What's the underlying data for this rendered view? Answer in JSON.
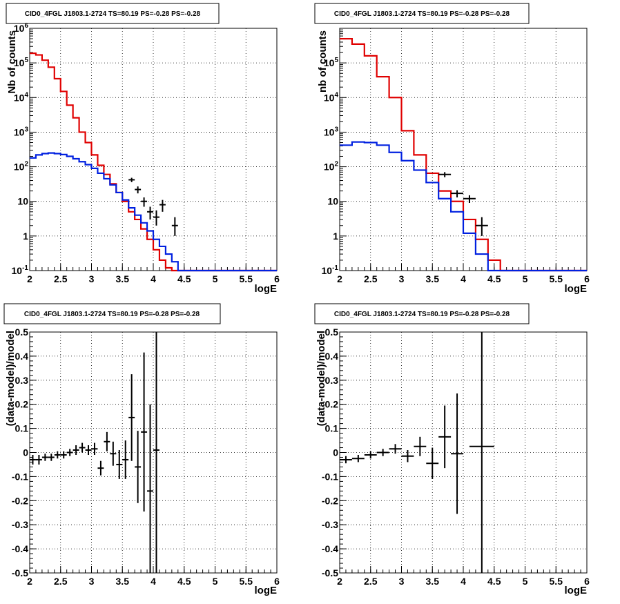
{
  "colors": {
    "data": "#000000",
    "total_model": "#e00000",
    "source_model": "#0020e0",
    "grid": "#000000"
  },
  "chart_data": [
    {
      "type": "line",
      "title": "CID0_4FGL J1803.1-2724 TS=80.19 PS=-0.28 PS=-0.28",
      "xlabel": "logE",
      "ylabel": "Nb of counts",
      "xlim": [
        2,
        6
      ],
      "ylim": [
        0.1,
        1000000
      ],
      "yscale": "log",
      "grid": true,
      "x_ticks": [
        "2",
        "2.5",
        "3",
        "3.5",
        "4",
        "4.5",
        "5",
        "5.5",
        "6"
      ],
      "y_ticks": [
        "10^-1",
        "1",
        "10",
        "10^2",
        "10^3",
        "10^4",
        "10^5",
        "10^6"
      ],
      "bin_edges": [
        2.0,
        2.1,
        2.2,
        2.3,
        2.4,
        2.5,
        2.6,
        2.7,
        2.8,
        2.9,
        3.0,
        3.1,
        3.2,
        3.3,
        3.4,
        3.5,
        3.6,
        3.7,
        3.8,
        3.9,
        4.0,
        4.1,
        4.2,
        4.3,
        4.4,
        4.5,
        4.6,
        4.7,
        4.8,
        4.9,
        5.0,
        5.1,
        5.2,
        5.3,
        5.4,
        5.5,
        5.6,
        5.7,
        5.8,
        5.9,
        6.0
      ],
      "series": [
        {
          "role": "total_model",
          "values": [
            190000,
            170000,
            120000,
            75000,
            35000,
            15000,
            6000,
            2600,
            1000,
            500,
            220,
            110,
            60,
            32,
            18,
            10,
            5,
            3,
            1.6,
            0.8,
            0.4,
            0.2,
            0.12,
            0.1,
            0.1,
            0.1,
            0.1,
            0.1,
            0.1,
            0.1,
            0.1,
            0.1,
            0.1,
            0.1,
            0.1,
            0.1,
            0.1,
            0.1,
            0.1,
            0.1
          ]
        },
        {
          "role": "source_model",
          "values": [
            180,
            220,
            240,
            250,
            240,
            225,
            200,
            170,
            140,
            115,
            90,
            65,
            45,
            30,
            18,
            11,
            6.5,
            4,
            2.4,
            1.4,
            0.8,
            0.5,
            0.3,
            0.18,
            0.1,
            0.1,
            0.1,
            0.1,
            0.1,
            0.1,
            0.1,
            0.1,
            0.1,
            0.1,
            0.1,
            0.1,
            0.1,
            0.1,
            0.1,
            0.1
          ]
        }
      ],
      "points": [
        {
          "x": 3.65,
          "y": 42,
          "ylo": 36,
          "yhi": 48,
          "xerr": 0.05
        },
        {
          "x": 3.75,
          "y": 22,
          "ylo": 17,
          "yhi": 27,
          "xerr": 0.05
        },
        {
          "x": 3.85,
          "y": 10,
          "ylo": 7,
          "yhi": 13,
          "xerr": 0.05
        },
        {
          "x": 3.95,
          "y": 5,
          "ylo": 3,
          "yhi": 7,
          "xerr": 0.05
        },
        {
          "x": 4.05,
          "y": 3.5,
          "ylo": 2,
          "yhi": 5.5,
          "xerr": 0.05
        },
        {
          "x": 4.15,
          "y": 8,
          "ylo": 5,
          "yhi": 11,
          "xerr": 0.05
        },
        {
          "x": 4.35,
          "y": 2,
          "ylo": 1,
          "yhi": 3.5,
          "xerr": 0.05
        }
      ]
    },
    {
      "type": "line",
      "title": "CID0_4FGL J1803.1-2724 TS=80.19 PS=-0.28 PS=-0.28",
      "xlabel": "logE",
      "ylabel": "nb of counts",
      "xlim": [
        2,
        6
      ],
      "ylim": [
        0.1,
        1000000
      ],
      "yscale": "log",
      "grid": true,
      "x_ticks": [
        "2",
        "2.5",
        "3",
        "3.5",
        "4",
        "4.5",
        "5",
        "5.5",
        "6"
      ],
      "y_ticks": [
        "10^-1",
        "1",
        "10",
        "10^2",
        "10^3",
        "10^4",
        "10^5"
      ],
      "bin_edges": [
        2.0,
        2.2,
        2.4,
        2.6,
        2.8,
        3.0,
        3.2,
        3.4,
        3.6,
        3.8,
        4.0,
        4.2,
        4.4,
        4.6,
        4.8,
        5.0,
        5.2,
        5.4,
        5.6,
        5.8,
        6.0
      ],
      "series": [
        {
          "role": "total_model",
          "values": [
            500000,
            350000,
            160000,
            40000,
            10000,
            1100,
            220,
            65,
            20,
            10,
            3,
            0.8,
            0.2,
            0.1,
            0.1,
            0.1,
            0.1,
            0.1,
            0.1,
            0.1
          ]
        },
        {
          "role": "source_model",
          "values": [
            420,
            520,
            500,
            420,
            260,
            150,
            80,
            35,
            12,
            5,
            1.2,
            0.3,
            0.1,
            0.1,
            0.1,
            0.1,
            0.1,
            0.1,
            0.1,
            0.1
          ]
        }
      ],
      "points": [
        {
          "x": 3.7,
          "y": 60,
          "ylo": 50,
          "yhi": 70,
          "xerr": 0.1
        },
        {
          "x": 3.9,
          "y": 17,
          "ylo": 13,
          "yhi": 21,
          "xerr": 0.1
        },
        {
          "x": 4.1,
          "y": 12,
          "ylo": 9,
          "yhi": 15,
          "xerr": 0.1
        },
        {
          "x": 4.3,
          "y": 2,
          "ylo": 1,
          "yhi": 3.5,
          "xerr": 0.1
        }
      ]
    },
    {
      "type": "scatter",
      "title": "CID0_4FGL J1803.1-2724 TS=80.19 PS=-0.28 PS=-0.28",
      "xlabel": "logE",
      "ylabel": "(data-model)/model",
      "xlim": [
        2,
        6
      ],
      "ylim": [
        -0.5,
        0.5
      ],
      "grid": true,
      "x_ticks": [
        "2",
        "2.5",
        "3",
        "3.5",
        "4",
        "4.5",
        "5",
        "5.5",
        "6"
      ],
      "y_ticks": [
        "-0.5",
        "-0.4",
        "-0.3",
        "-0.2",
        "-0.1",
        "0",
        "0.1",
        "0.2",
        "0.3",
        "0.4",
        "0.5"
      ],
      "points": [
        {
          "x": 2.05,
          "y": -0.03,
          "err": 0.02,
          "xerr": 0.05
        },
        {
          "x": 2.15,
          "y": -0.03,
          "err": 0.02,
          "xerr": 0.05
        },
        {
          "x": 2.25,
          "y": -0.02,
          "err": 0.015,
          "xerr": 0.05
        },
        {
          "x": 2.35,
          "y": -0.02,
          "err": 0.015,
          "xerr": 0.05
        },
        {
          "x": 2.45,
          "y": -0.01,
          "err": 0.015,
          "xerr": 0.05
        },
        {
          "x": 2.55,
          "y": -0.01,
          "err": 0.015,
          "xerr": 0.05
        },
        {
          "x": 2.65,
          "y": 0.0,
          "err": 0.015,
          "xerr": 0.05
        },
        {
          "x": 2.75,
          "y": 0.01,
          "err": 0.02,
          "xerr": 0.05
        },
        {
          "x": 2.85,
          "y": 0.02,
          "err": 0.02,
          "xerr": 0.05
        },
        {
          "x": 2.95,
          "y": 0.01,
          "err": 0.02,
          "xerr": 0.05
        },
        {
          "x": 3.05,
          "y": 0.015,
          "err": 0.025,
          "xerr": 0.05
        },
        {
          "x": 3.15,
          "y": -0.065,
          "err": 0.03,
          "xerr": 0.05
        },
        {
          "x": 3.25,
          "y": 0.045,
          "err": 0.04,
          "xerr": 0.05
        },
        {
          "x": 3.35,
          "y": -0.005,
          "err": 0.05,
          "xerr": 0.05
        },
        {
          "x": 3.45,
          "y": -0.05,
          "err": 0.06,
          "xerr": 0.05
        },
        {
          "x": 3.55,
          "y": -0.03,
          "err": 0.08,
          "xerr": 0.05
        },
        {
          "x": 3.65,
          "y": 0.145,
          "err": 0.18,
          "xerr": 0.05
        },
        {
          "x": 3.75,
          "y": -0.06,
          "err": 0.15,
          "xerr": 0.05
        },
        {
          "x": 3.85,
          "y": 0.085,
          "err": 0.33,
          "xerr": 0.05
        },
        {
          "x": 3.95,
          "y": -0.16,
          "err": 0.36,
          "xerr": 0.05
        },
        {
          "x": 4.05,
          "y": 0.01,
          "err": 0.52,
          "xerr": 0.05
        }
      ]
    },
    {
      "type": "scatter",
      "title": "CID0_4FGL J1803.1-2724 TS=80.19 PS=-0.28 PS=-0.28",
      "xlabel": "logE",
      "ylabel": "(data-model)/model",
      "xlim": [
        2,
        6
      ],
      "ylim": [
        -0.5,
        0.5
      ],
      "grid": true,
      "x_ticks": [
        "2",
        "2.5",
        "3",
        "3.5",
        "4",
        "4.5",
        "5",
        "5.5",
        "6"
      ],
      "y_ticks": [
        "-0.5",
        "-0.4",
        "-0.3",
        "-0.2",
        "-0.1",
        "0",
        "0.1",
        "0.2",
        "0.3",
        "0.4",
        "0.5"
      ],
      "points": [
        {
          "x": 2.1,
          "y": -0.03,
          "err": 0.015,
          "xerr": 0.1
        },
        {
          "x": 2.3,
          "y": -0.025,
          "err": 0.015,
          "xerr": 0.1
        },
        {
          "x": 2.5,
          "y": -0.01,
          "err": 0.015,
          "xerr": 0.1
        },
        {
          "x": 2.7,
          "y": 0.0,
          "err": 0.015,
          "xerr": 0.1
        },
        {
          "x": 2.9,
          "y": 0.015,
          "err": 0.02,
          "xerr": 0.1
        },
        {
          "x": 3.1,
          "y": -0.015,
          "err": 0.025,
          "xerr": 0.1
        },
        {
          "x": 3.3,
          "y": 0.025,
          "err": 0.04,
          "xerr": 0.1
        },
        {
          "x": 3.5,
          "y": -0.045,
          "err": 0.065,
          "xerr": 0.1
        },
        {
          "x": 3.7,
          "y": 0.065,
          "err": 0.13,
          "xerr": 0.1
        },
        {
          "x": 3.9,
          "y": -0.005,
          "err": 0.25,
          "xerr": 0.1
        },
        {
          "x": 4.3,
          "y": 0.025,
          "err": 0.55,
          "xerr": 0.2
        }
      ]
    }
  ]
}
